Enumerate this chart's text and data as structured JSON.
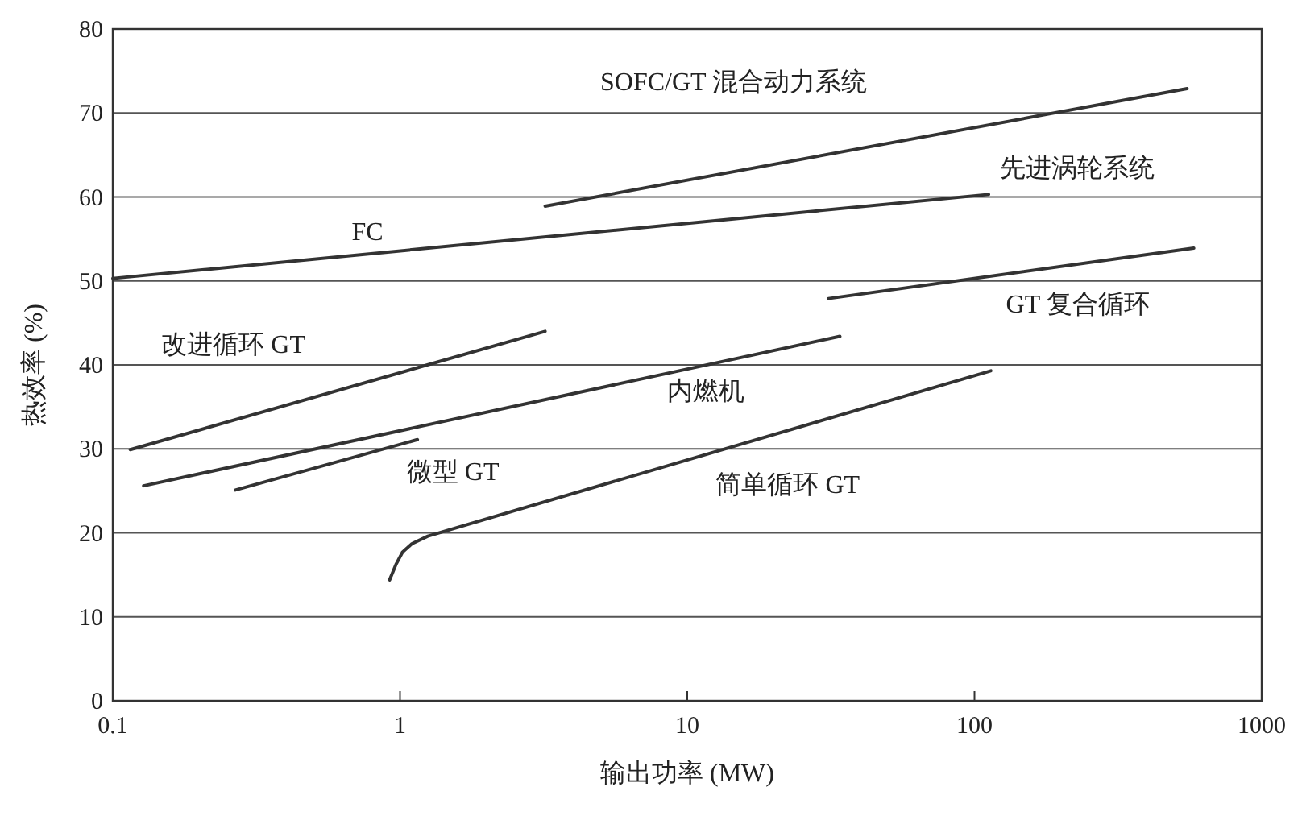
{
  "chart_data": {
    "type": "line",
    "xlabel": "输出功率 (MW)",
    "ylabel": "热效率 (%)",
    "log": "x",
    "grid": "y",
    "xlim": [
      0.1,
      1000
    ],
    "xticks": [
      0.1,
      1,
      10,
      100,
      1000
    ],
    "ylim": [
      0,
      80
    ],
    "yticks": [
      0,
      10,
      20,
      30,
      40,
      50,
      60,
      70,
      80
    ],
    "series": [
      {
        "name": "SOFC/GT 混合动力系统",
        "color": "#333333",
        "x": [
          3.2,
          550
        ],
        "values": [
          58.9,
          72.9
        ]
      },
      {
        "name": "FC",
        "color": "#333333",
        "x": [
          0.1,
          112
        ],
        "values": [
          50.3,
          60.3
        ]
      },
      {
        "name": "GT 复合循环",
        "color": "#333333",
        "x": [
          31,
          580
        ],
        "values": [
          47.9,
          53.9
        ]
      },
      {
        "name": "改进循环 GT",
        "color": "#333333",
        "x": [
          0.115,
          3.2
        ],
        "values": [
          29.9,
          44
        ]
      },
      {
        "name": "内燃机",
        "color": "#333333",
        "x": [
          0.128,
          34
        ],
        "values": [
          25.6,
          43.4
        ]
      },
      {
        "name": "微型 GT",
        "color": "#333333",
        "x": [
          0.267,
          1.15
        ],
        "values": [
          25.1,
          31.1
        ]
      },
      {
        "name": "简单循环 GT",
        "color": "#333333",
        "x": [
          0.92,
          0.97,
          1.02,
          1.1,
          1.25,
          114
        ],
        "values": [
          14.4,
          16.3,
          17.7,
          18.7,
          19.6,
          39.3
        ]
      }
    ],
    "annotations": [
      {
        "text": "先进涡轮系统",
        "x": 112,
        "y": 60.3
      }
    ]
  }
}
